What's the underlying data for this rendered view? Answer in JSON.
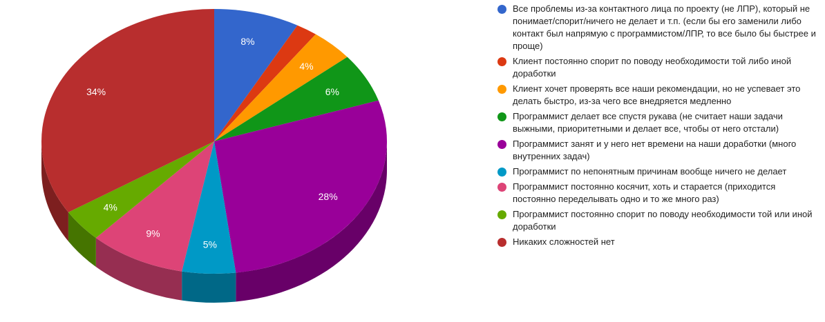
{
  "chart_data": {
    "type": "pie",
    "is3d": true,
    "title": "",
    "legend_position": "right",
    "unit": "%",
    "label_color": "#ffffff",
    "slices": [
      {
        "label": "Все проблемы из-за контактного лица по проекту (не ЛПР), который не понимает/спорит/ничего не делает и т.п. (если бы его заменили либо контакт был напрямую с программистом/ЛПР, то все было бы быстрее и проще)",
        "value": 8,
        "percent_label": "8%",
        "color": "#3366CC"
      },
      {
        "label": "Клиент постоянно спорит по поводу необходимости той либо иной доработки",
        "value": 2,
        "percent_label": "",
        "color": "#DC3912"
      },
      {
        "label": "Клиент хочет проверять все наши рекомендации, но не успевает это делать быстро, из-за чего все внедряется медленно",
        "value": 4,
        "percent_label": "4%",
        "color": "#FF9900"
      },
      {
        "label": "Программист делает все спустя рукава (не считает наши задачи выжными, приоритетными и делает все, чтобы от него отстали)",
        "value": 6,
        "percent_label": "6%",
        "color": "#109618"
      },
      {
        "label": "Программист занят и у него нет времени на наши доработки (много внутренних задач)",
        "value": 28,
        "percent_label": "28%",
        "color": "#990099"
      },
      {
        "label": "Программист по непонятным причинам вообще ничего не делает",
        "value": 5,
        "percent_label": "5%",
        "color": "#0099C6"
      },
      {
        "label": "Программист постоянно косячит, хоть и старается (приходится постоянно переделывать одно и то же много раз)",
        "value": 9,
        "percent_label": "9%",
        "color": "#DD4477"
      },
      {
        "label": "Программист постоянно спорит по поводу необходимости той или иной доработки",
        "value": 4,
        "percent_label": "4%",
        "color": "#66AA00"
      },
      {
        "label": "Никаких сложностей нет",
        "value": 34,
        "percent_label": "34%",
        "color": "#B82E2E"
      }
    ]
  }
}
